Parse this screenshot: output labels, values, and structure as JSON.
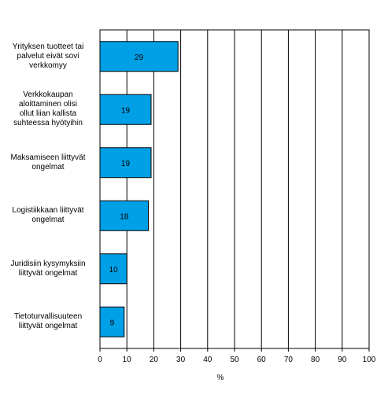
{
  "chart_data": {
    "type": "bar",
    "orientation": "horizontal",
    "categories": [
      "Yrityksen tuotteet tai palvelut eivät sovi verkkomyy",
      "Verkkokaupan aloittaminen olisi ollut liian kallista suhteessa hyötyihin",
      "Maksamiseen liittyvät ongelmat",
      "Logistiikkaan liittyvät ongelmat",
      "Juridisiin kysymyksiin liittyvät ongelmat",
      "Tietoturvallisuuteen liittyvät ongelmat"
    ],
    "category_lines": [
      [
        "Yrityksen tuotteet tai",
        "palvelut eivät sovi",
        "verkkomyy"
      ],
      [
        "Verkkokaupan",
        "aloittaminen olisi",
        "ollut liian kallista",
        "suhteessa hyötyihin"
      ],
      [
        "Maksamiseen liittyvät",
        "ongelmat"
      ],
      [
        "Logistiikkaan liittyvät",
        "ongelmat"
      ],
      [
        "Juridisiin kysymyksiin",
        "liittyvät ongelmat"
      ],
      [
        "Tietoturvallisuuteen",
        "liittyvät ongelmat"
      ]
    ],
    "values": [
      29,
      19,
      19,
      18,
      10,
      9
    ],
    "value_labels": [
      "29",
      "19",
      "19",
      "18",
      "10",
      "9"
    ],
    "xlabel": "%",
    "ylabel": "",
    "title": "",
    "xlim": [
      0,
      100
    ],
    "xticks": [
      "0",
      "10",
      "20",
      "30",
      "40",
      "50",
      "60",
      "70",
      "80",
      "90",
      "100"
    ],
    "grid": "vertical",
    "legend": "none",
    "bar_color": "#00a0e6",
    "bar_edge_color": "#000000"
  }
}
